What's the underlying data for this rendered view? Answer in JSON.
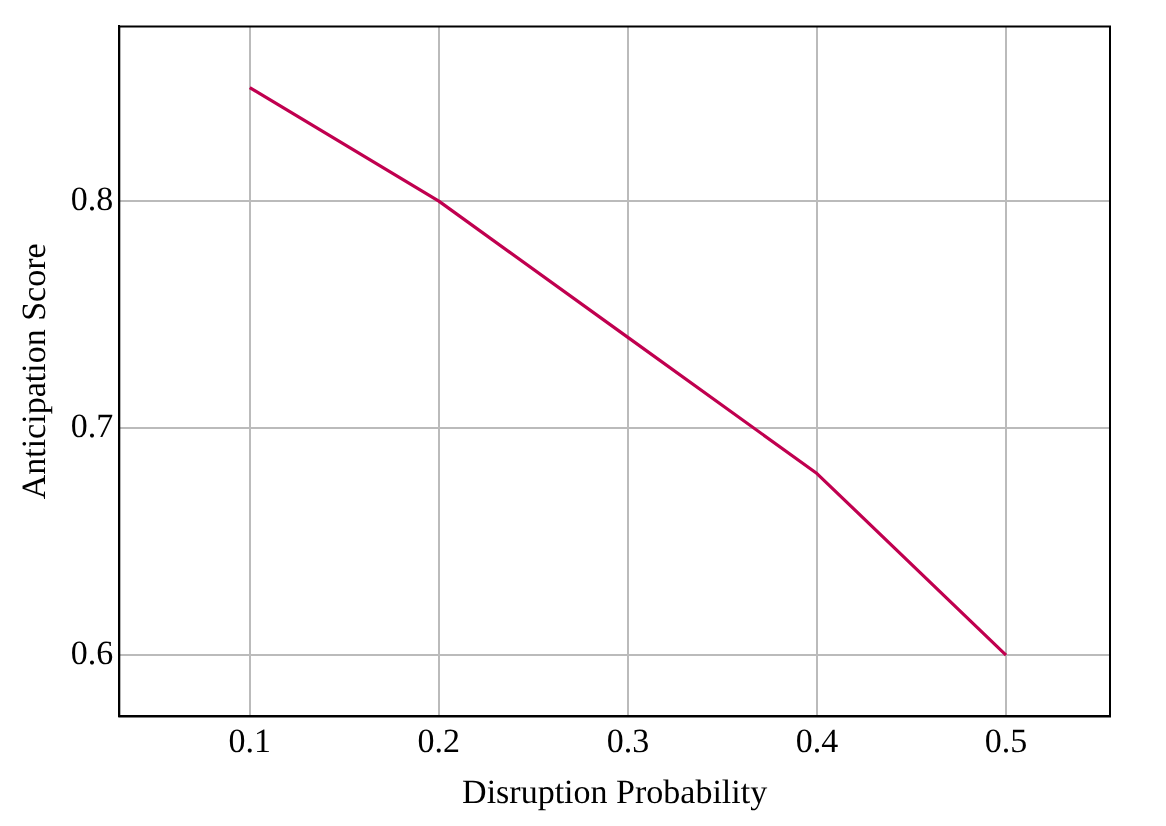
{
  "chart_data": {
    "type": "line",
    "xlabel": "Disruption Probability",
    "ylabel": "Anticipation Score",
    "x": [
      0.1,
      0.2,
      0.3,
      0.4,
      0.5
    ],
    "series": [
      {
        "color": "#c0004f",
        "values": [
          0.85,
          0.8,
          0.74,
          0.68,
          0.6
        ]
      }
    ],
    "xlim": [
      0.031,
      0.555
    ],
    "xticks": [
      0.1,
      0.2,
      0.3,
      0.4,
      0.5
    ],
    "ylim": [
      0.573,
      0.877
    ],
    "yticks": [
      0.6,
      0.7,
      0.8
    ],
    "grid": true,
    "legend": false,
    "marker": "none",
    "line_style": "solid"
  }
}
